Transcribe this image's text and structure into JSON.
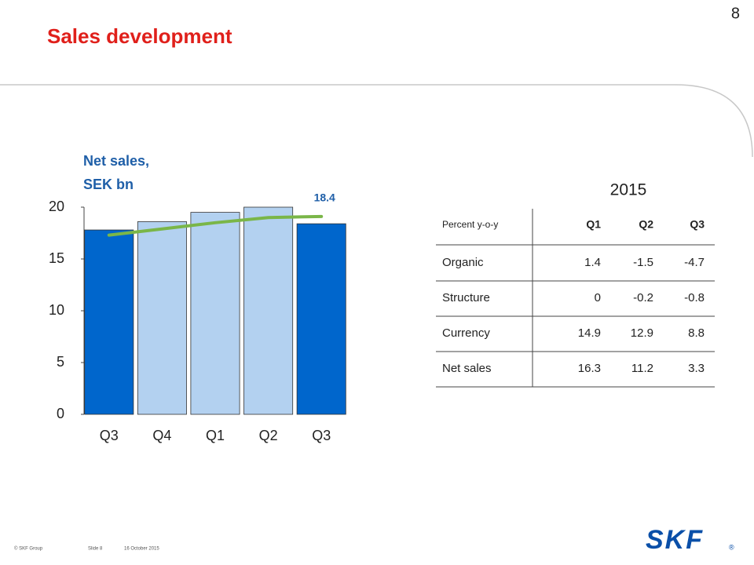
{
  "slide_number": "8",
  "title": "Sales development",
  "chart_data": {
    "type": "bar",
    "ylabel": [
      "Net sales,",
      "SEK bn"
    ],
    "categories": [
      "Q3",
      "Q4",
      "Q1",
      "Q2",
      "Q3"
    ],
    "values": [
      17.8,
      18.6,
      19.5,
      20.0,
      18.4
    ],
    "colors": [
      "#0066cc",
      "#b3d1f0",
      "#b3d1f0",
      "#b3d1f0",
      "#0066cc"
    ],
    "line": {
      "color": "#7ab648",
      "values": [
        17.3,
        17.9,
        18.5,
        19.0,
        19.1
      ]
    },
    "ylim": [
      0,
      20
    ],
    "yticks": [
      0,
      5,
      10,
      15,
      20
    ]
  },
  "table": {
    "title": "2015",
    "header": [
      "Percent y-o-y",
      "Q1",
      "Q2",
      "Q3"
    ],
    "rows": [
      [
        "Organic",
        "1.4",
        "-1.5",
        "-4.7"
      ],
      [
        "Structure",
        "0",
        "-0.2",
        "-0.8"
      ],
      [
        "Currency",
        "14.9",
        "12.9",
        "8.8"
      ],
      [
        "Net sales",
        "16.3",
        "11.2",
        "3.3"
      ]
    ]
  },
  "footer": [
    "© SKF Group",
    "Slide 8",
    "16 October 2015"
  ],
  "logo": "SKF"
}
